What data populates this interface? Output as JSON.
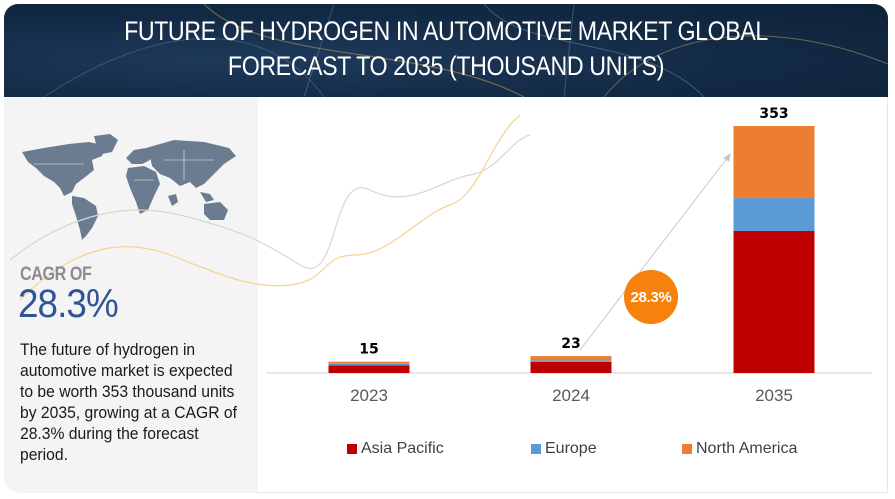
{
  "header": {
    "title_line1": "FUTURE OF HYDROGEN IN AUTOMOTIVE MARKET GLOBAL",
    "title_line2": "FORECAST TO 2035 (THOUSAND UNITS)"
  },
  "summary": {
    "cagr_label": "CAGR OF",
    "cagr_value": "28.3%",
    "description": "The future of hydrogen in automotive market is expected to be worth 353 thousand units by 2035, growing at a CAGR of 28.3% during the forecast period.",
    "map_icon": "world-map-icon"
  },
  "badge": {
    "label": "28.3%"
  },
  "colors": {
    "asia_pacific": "#c00000",
    "europe": "#5b9bd5",
    "north_america": "#ed7d31",
    "badge": "#f6820d",
    "cagr_text": "#2f5597"
  },
  "chart_data": {
    "type": "bar",
    "stacked": true,
    "title": "FUTURE OF HYDROGEN IN AUTOMOTIVE MARKET GLOBAL FORECAST TO 2035 (THOUSAND UNITS)",
    "xlabel": "",
    "ylabel": "",
    "unit": "thousand units",
    "categories": [
      "2023",
      "2024",
      "2035"
    ],
    "totals": [
      15,
      23,
      353
    ],
    "total_labels": [
      "15",
      "23",
      "353"
    ],
    "series": [
      {
        "name": "Asia Pacific",
        "color": "#c00000",
        "values": [
          11,
          16,
          203
        ]
      },
      {
        "name": "Europe",
        "color": "#5b9bd5",
        "values": [
          1,
          1,
          47
        ]
      },
      {
        "name": "North America",
        "color": "#ed7d31",
        "values": [
          3,
          6,
          103
        ]
      }
    ],
    "ylim": [
      0,
      353
    ],
    "grid": false,
    "legend_position": "bottom",
    "annotation": "28.3%"
  }
}
